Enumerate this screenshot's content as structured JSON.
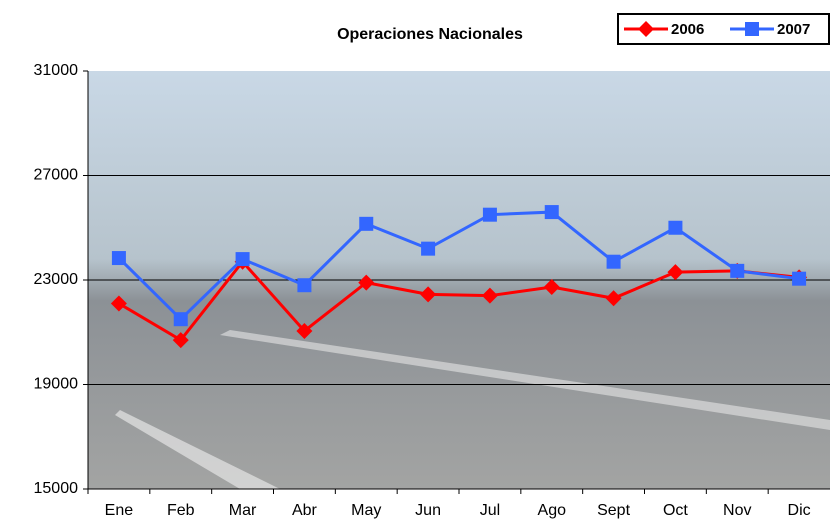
{
  "chart_data": {
    "type": "line",
    "title": "Operaciones Nacionales",
    "categories": [
      "Ene",
      "Feb",
      "Mar",
      "Abr",
      "May",
      "Jun",
      "Jul",
      "Ago",
      "Sept",
      "Oct",
      "Nov",
      "Dic"
    ],
    "series": [
      {
        "name": "2006",
        "color": "#ff0000",
        "marker": "diamond",
        "values": [
          22100,
          20700,
          23700,
          21050,
          22900,
          22450,
          22400,
          22730,
          22300,
          23300,
          23350,
          23100
        ]
      },
      {
        "name": "2007",
        "color": "#3366ff",
        "marker": "square",
        "values": [
          23840,
          21500,
          23800,
          22800,
          25150,
          24200,
          25500,
          25600,
          23700,
          25000,
          23350,
          23050
        ]
      }
    ],
    "ylim": [
      15000,
      31000
    ],
    "yticks": [
      15000,
      19000,
      23000,
      27000,
      31000
    ],
    "grid": true,
    "legend": "top-right"
  }
}
